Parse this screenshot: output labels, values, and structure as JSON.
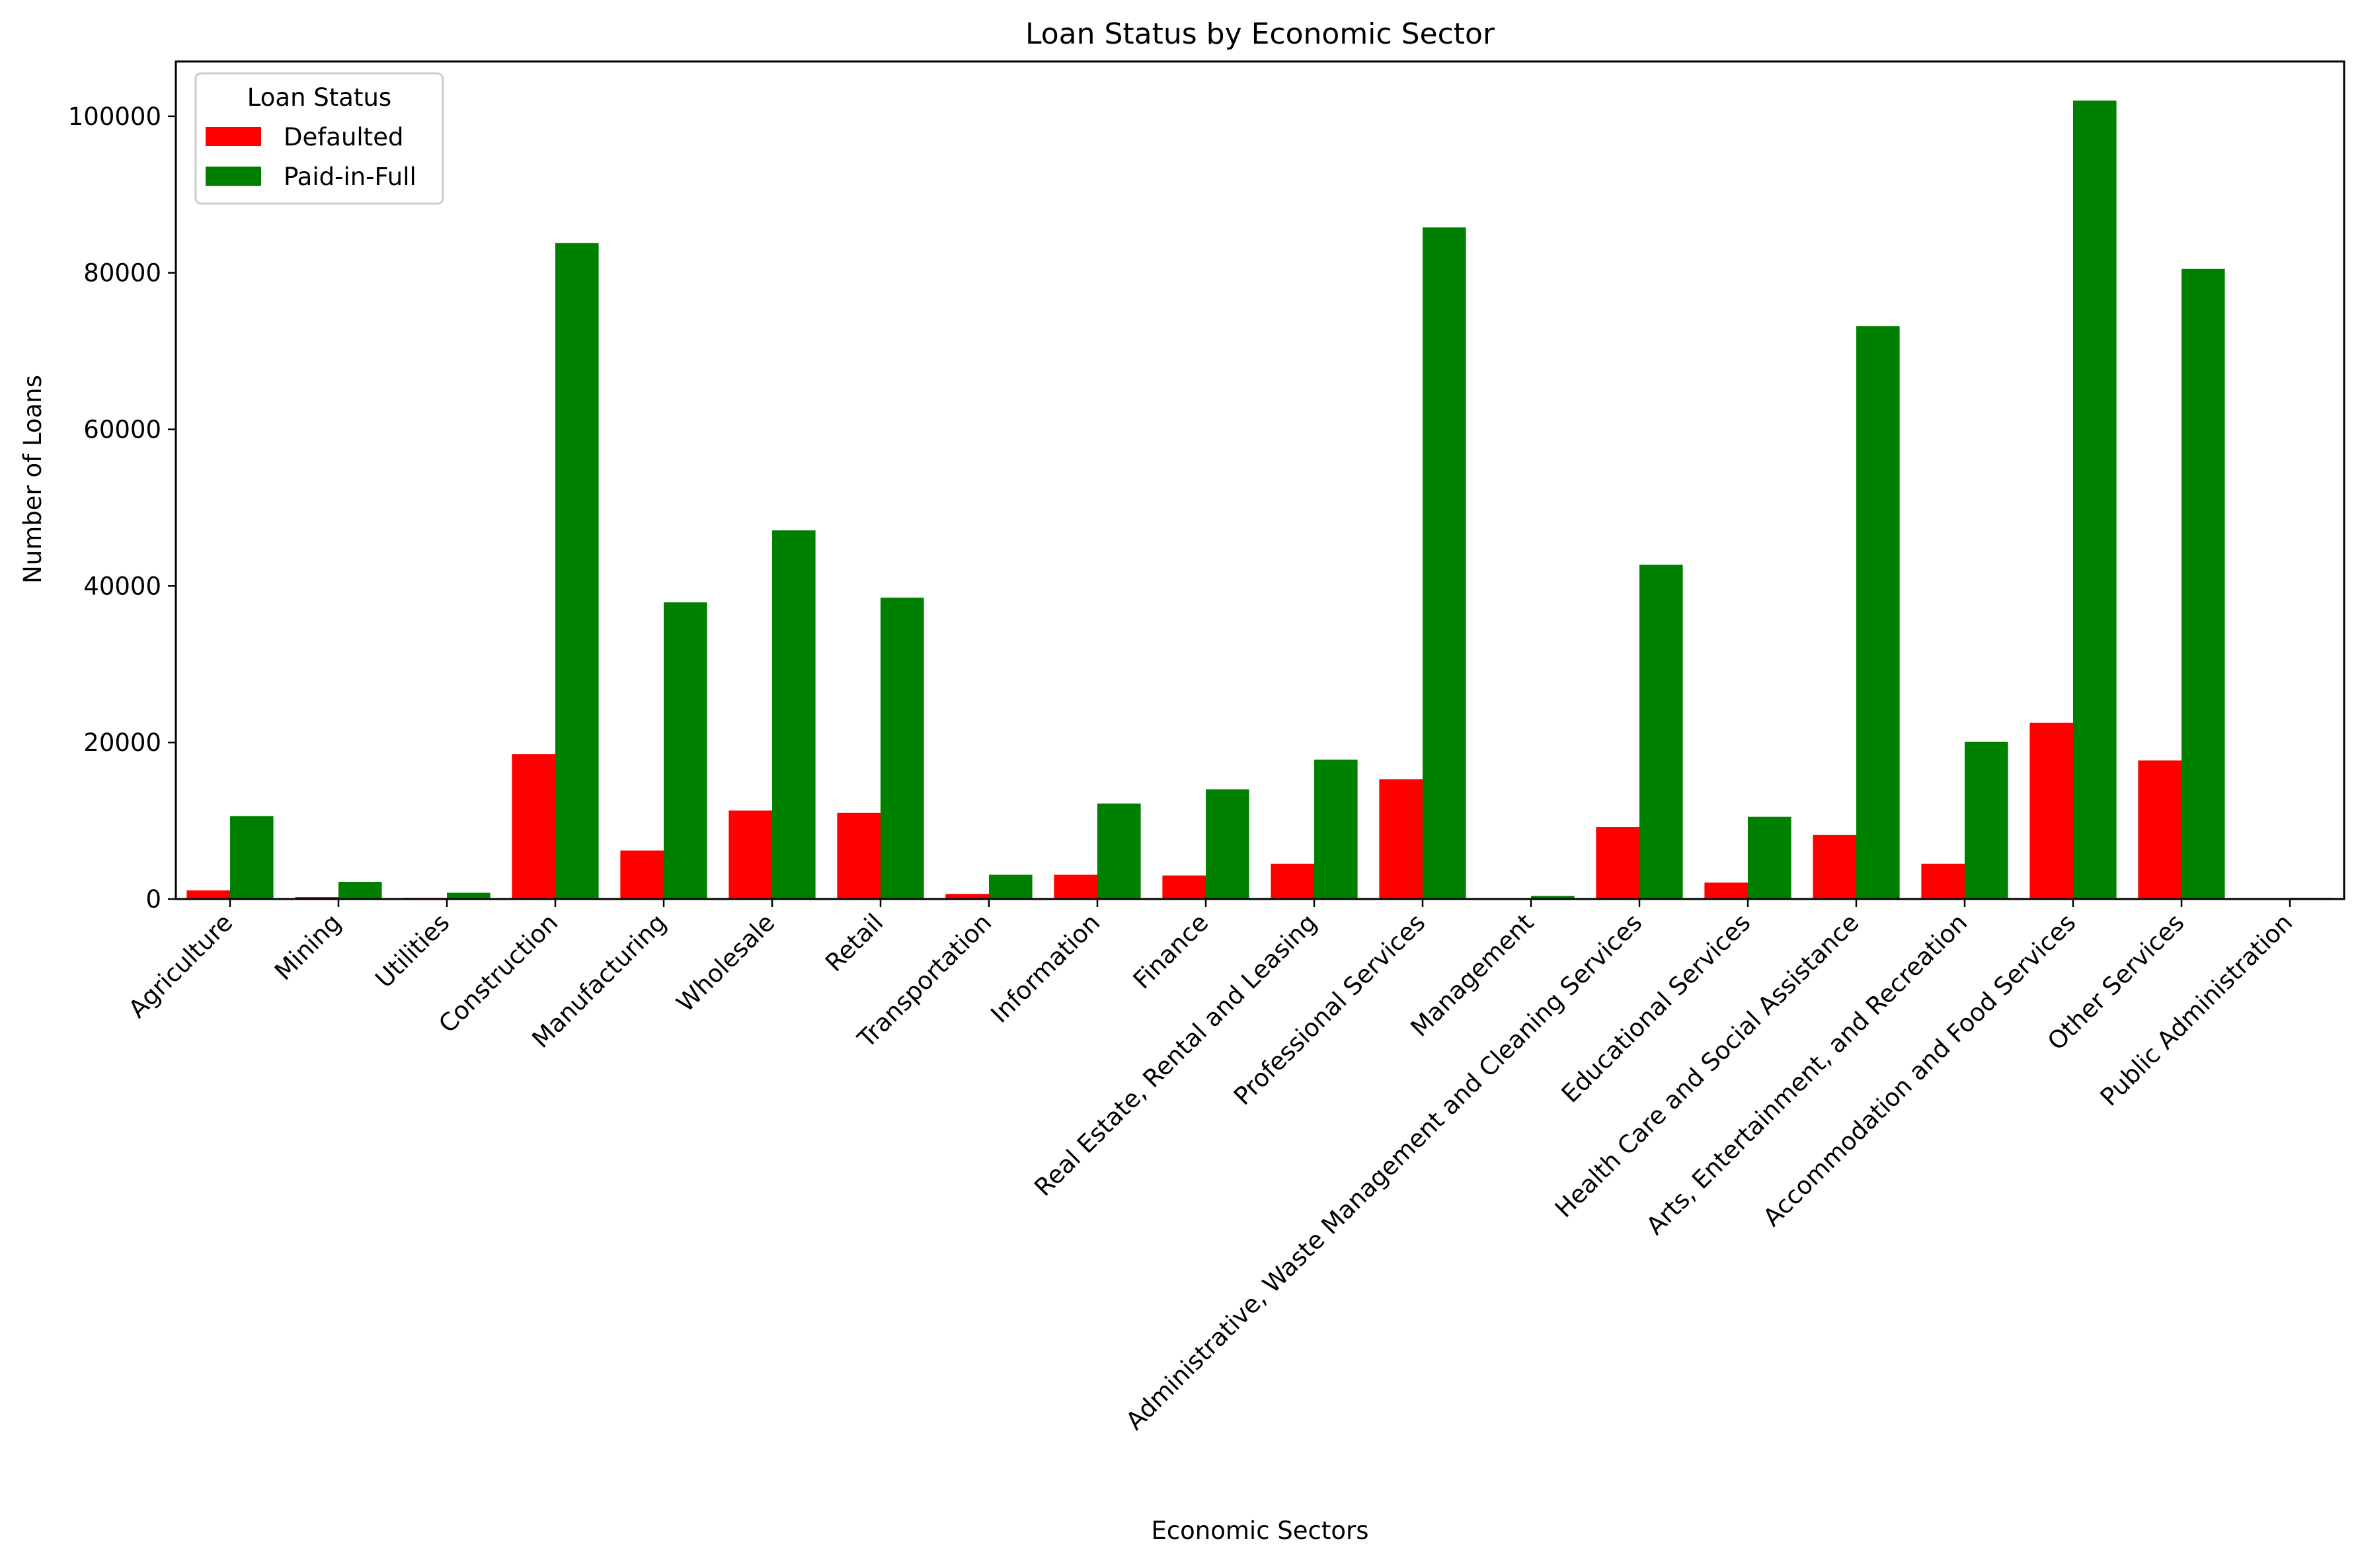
{
  "chart_data": {
    "type": "bar",
    "title": "Loan Status by Economic Sector",
    "xlabel": "Economic Sectors",
    "ylabel": "Number of Loans",
    "ylim": [
      0,
      107000
    ],
    "yticks": [
      0,
      20000,
      40000,
      60000,
      80000,
      100000
    ],
    "grid": false,
    "legend": {
      "title": "Loan Status",
      "placement": "top-left"
    },
    "categories": [
      "Agriculture",
      "Mining",
      "Utilities",
      "Construction",
      "Manufacturing",
      "Wholesale",
      "Retail",
      "Transportation",
      "Information",
      "Finance",
      "Real Estate, Rental and Leasing",
      "Professional Services",
      "Management",
      "Administrative, Waste Management and Cleaning Services",
      "Educational Services",
      "Health Care and Social Assistance",
      "Arts, Entertainment, and Recreation",
      "Accommodation and Food Services",
      "Other Services",
      "Public Administration"
    ],
    "series": [
      {
        "name": "Defaulted",
        "color": "#ff0000",
        "values": [
          1100,
          250,
          150,
          18500,
          6200,
          11300,
          11000,
          650,
          3100,
          3000,
          4500,
          15300,
          40,
          9200,
          2100,
          8200,
          4500,
          22500,
          17700,
          30
        ]
      },
      {
        "name": "Paid-in-Full",
        "color": "#008000",
        "values": [
          10600,
          2200,
          800,
          83800,
          37900,
          47100,
          38500,
          3100,
          12200,
          14000,
          17800,
          85800,
          400,
          42700,
          10500,
          73200,
          20100,
          102000,
          80500,
          150
        ]
      }
    ]
  }
}
